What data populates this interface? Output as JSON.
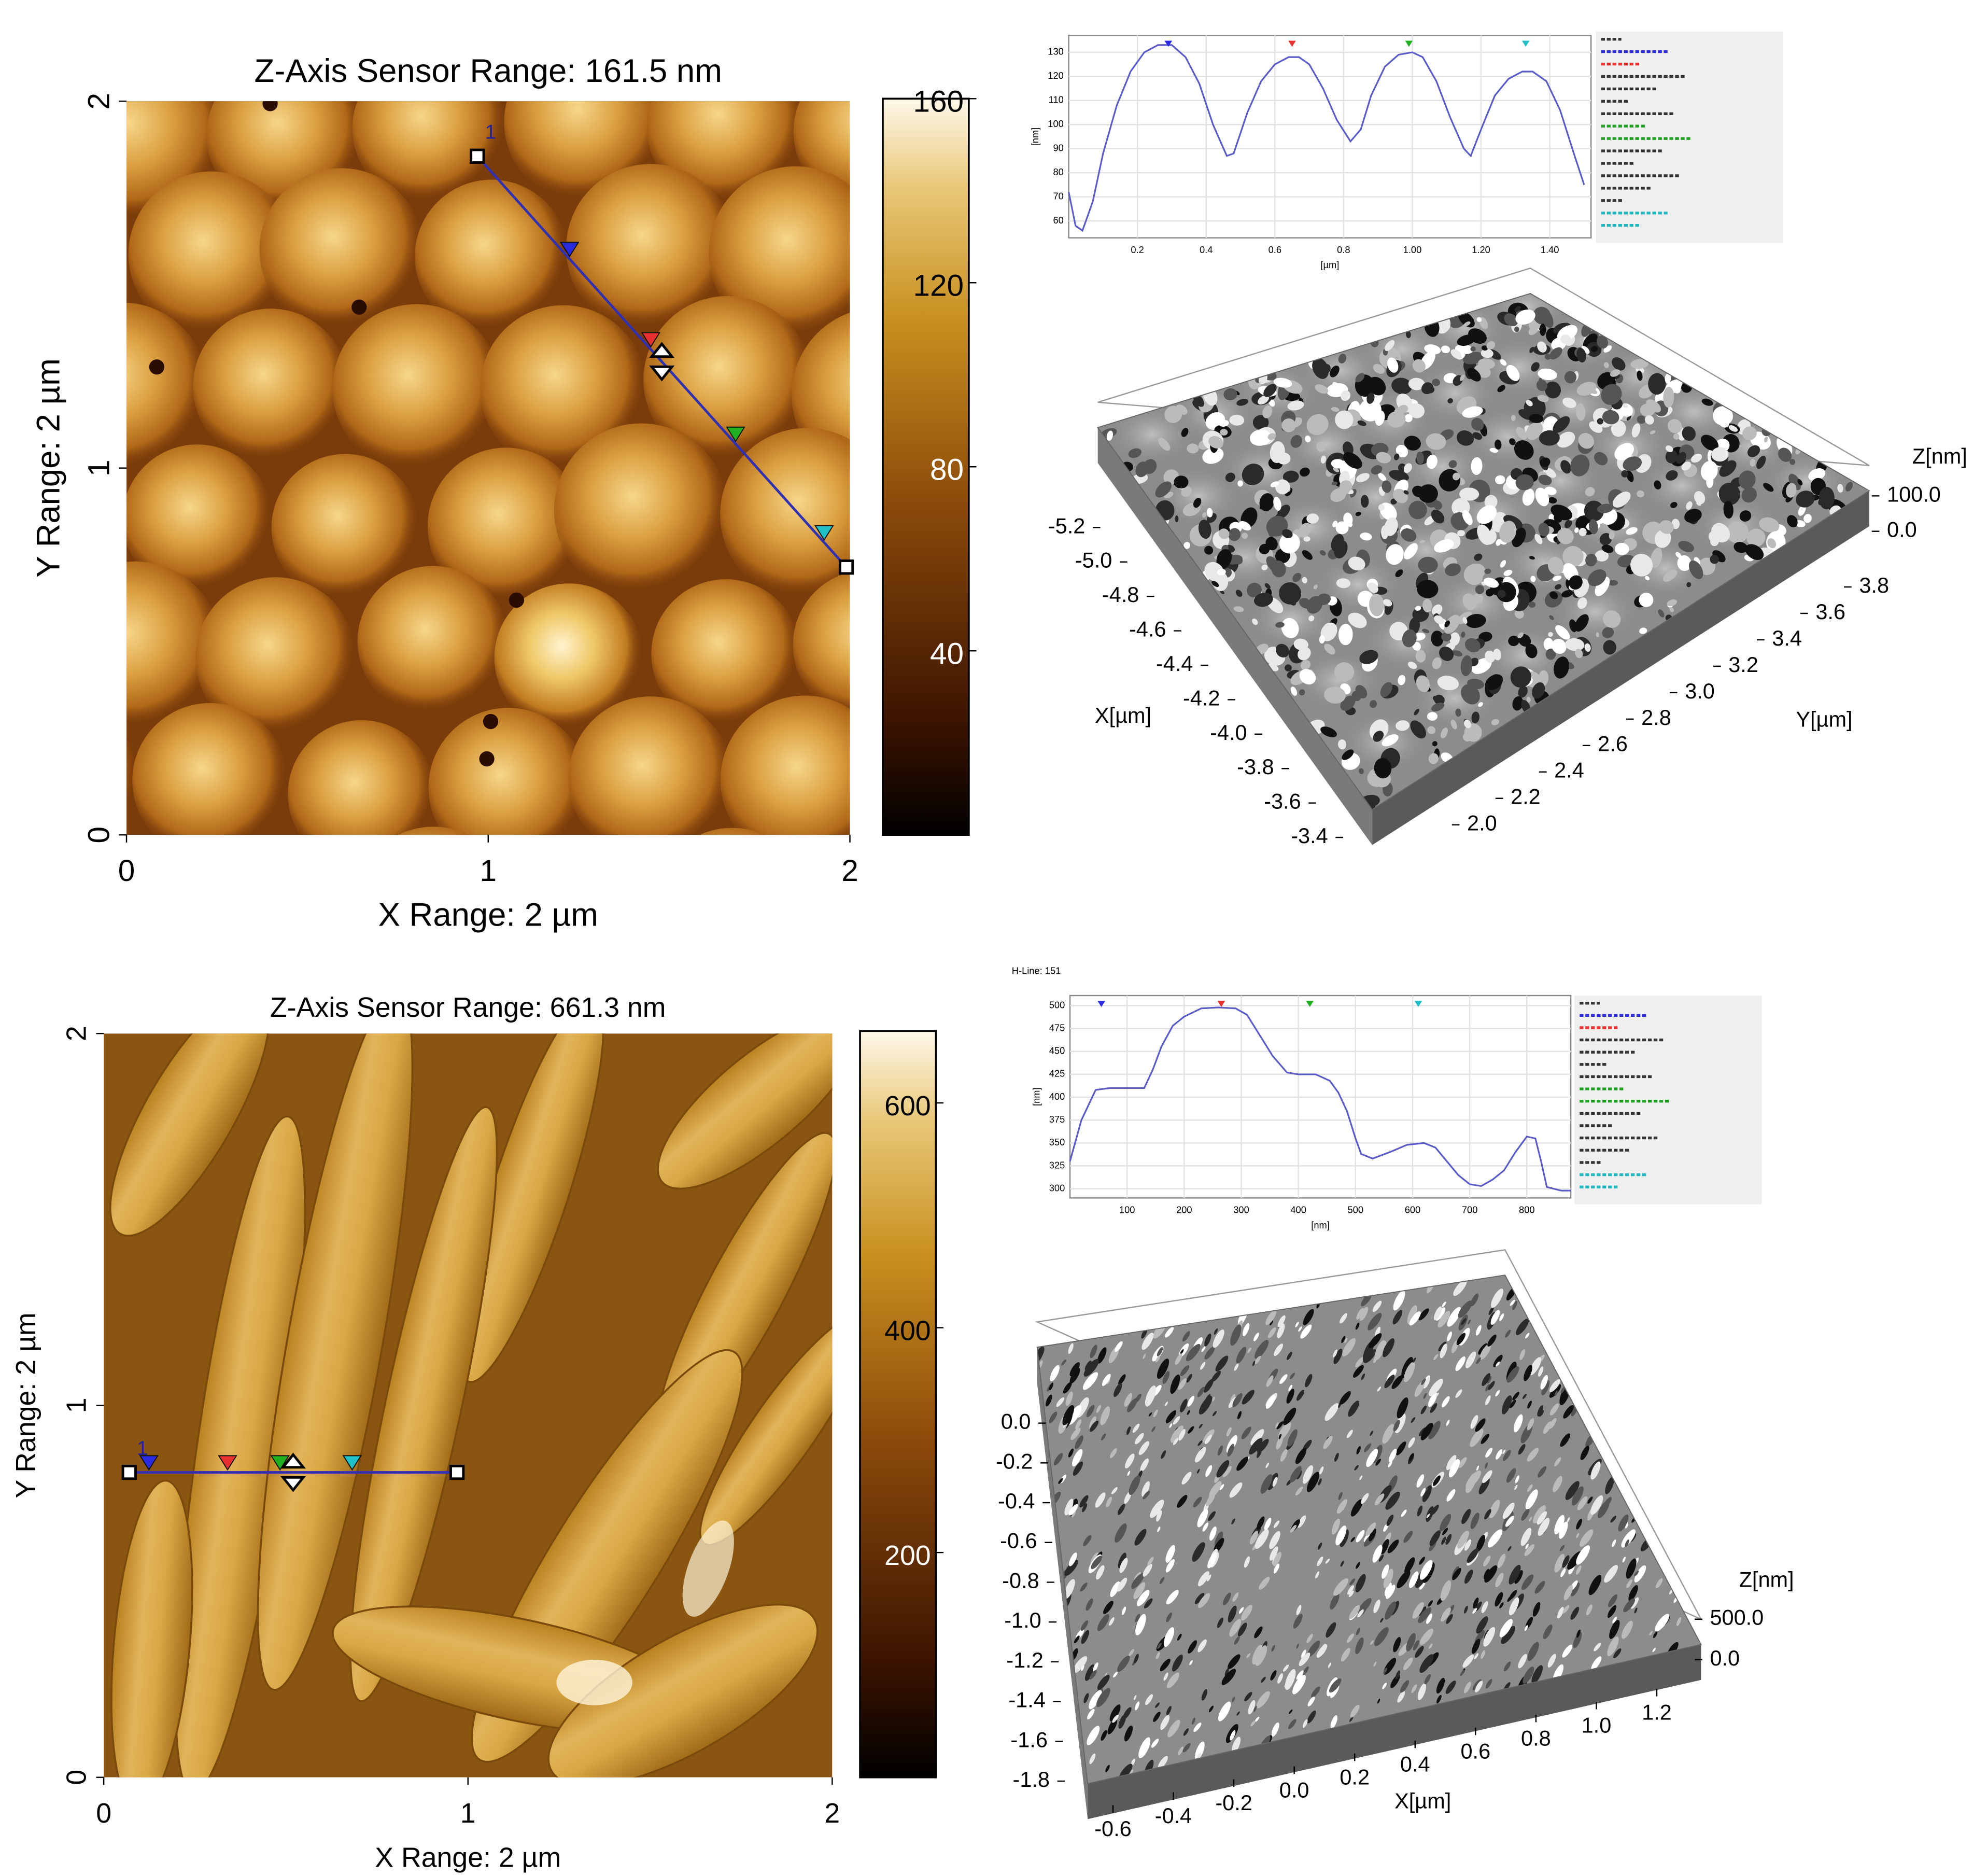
{
  "chart_data": [
    {
      "type": "heatmap",
      "title": "Z-Axis Sensor Range:  161.5 nm",
      "xlabel": "X Range: 2 µm",
      "ylabel": "Y Range: 2 µm",
      "xlim": [
        0,
        2
      ],
      "ylim": [
        0,
        2
      ],
      "xticks": [
        0,
        1,
        2
      ],
      "yticks": [
        0,
        1,
        2
      ],
      "clim": [
        0,
        160
      ],
      "cticks": [
        40,
        80,
        120,
        160
      ],
      "cursor": {
        "label": "1",
        "x": [
          0.97,
          1.99
        ],
        "y": [
          1.85,
          0.73
        ]
      }
    },
    {
      "type": "line",
      "xlabel": "[µm]",
      "ylabel": "[nm]",
      "color": "#5a5ac8",
      "grid": true,
      "x": [
        0,
        0.02,
        0.04,
        0.07,
        0.1,
        0.14,
        0.18,
        0.22,
        0.26,
        0.3,
        0.34,
        0.38,
        0.42,
        0.46,
        0.48,
        0.52,
        0.56,
        0.6,
        0.64,
        0.67,
        0.7,
        0.74,
        0.78,
        0.82,
        0.85,
        0.88,
        0.92,
        0.96,
        1.0,
        1.03,
        1.07,
        1.11,
        1.15,
        1.17,
        1.2,
        1.24,
        1.28,
        1.32,
        1.35,
        1.39,
        1.43,
        1.47,
        1.5
      ],
      "values": [
        72,
        58,
        56,
        68,
        88,
        108,
        122,
        130,
        133,
        133,
        128,
        117,
        100,
        87,
        88,
        105,
        118,
        125,
        128,
        128,
        125,
        115,
        102,
        93,
        98,
        112,
        124,
        129,
        130,
        128,
        118,
        103,
        90,
        87,
        98,
        112,
        119,
        122,
        122,
        118,
        106,
        88,
        75
      ],
      "xlim": [
        0,
        1.52
      ],
      "ylim": [
        53,
        137
      ],
      "xticks": [
        0.2,
        0.4,
        0.6,
        0.8,
        {
          "value": 1,
          "label": "1.00"
        },
        {
          "value": 1.2,
          "label": "1.20"
        },
        {
          "value": 1.4,
          "label": "1.40"
        }
      ],
      "yticks": [
        60,
        70,
        80,
        90,
        100,
        110,
        120,
        130
      ],
      "markers": {
        "x": [
          0.29,
          0.65,
          0.99,
          1.33
        ],
        "colors": [
          "#2a2ae0",
          "#e83030",
          "#20b020",
          "#20c0c8"
        ]
      }
    },
    {
      "type": "surface3d",
      "xlabel": "X[µm]",
      "ylabel": "Y[µm]",
      "zlabel": "Z[nm]",
      "xlim": [
        -5.2,
        -3.4
      ],
      "xticks": [
        -5.2,
        {
          "value": -5,
          "label": "-5.0"
        },
        -4.8,
        -4.6,
        -4.4,
        -4.2,
        {
          "value": -4,
          "label": "-4.0"
        },
        -3.8,
        -3.6,
        -3.4
      ],
      "ylim": [
        2,
        3.8
      ],
      "yticks": [
        {
          "value": 2,
          "label": "2.0"
        },
        2.2,
        2.4,
        2.6,
        2.8,
        {
          "value": 3,
          "label": "3.0"
        },
        3.2,
        3.4,
        3.6,
        3.8
      ],
      "zlim": [
        0,
        100
      ],
      "zticks": [
        {
          "value": 0,
          "label": "0.0"
        },
        {
          "value": 100,
          "label": "100.0"
        }
      ]
    },
    {
      "type": "heatmap",
      "title": "Z-Axis Sensor Range:  661.3 nm",
      "xlabel": "X Range: 2 µm",
      "ylabel": "Y Range: 2 µm",
      "xlim": [
        0,
        2
      ],
      "ylim": [
        0,
        2
      ],
      "xticks": [
        0,
        1,
        2
      ],
      "yticks": [
        0,
        1,
        2
      ],
      "clim": [
        0,
        664
      ],
      "cticks": [
        200,
        400,
        600
      ],
      "cursor": {
        "label": "1",
        "x": [
          0.07,
          0.97
        ],
        "y": [
          0.82,
          0.82
        ]
      }
    },
    {
      "type": "line",
      "title": "H-Line: 151",
      "xlabel": "[nm]",
      "ylabel": "[nm]",
      "color": "#5a5ac8",
      "grid": true,
      "x": [
        0,
        20,
        45,
        70,
        100,
        130,
        145,
        160,
        180,
        200,
        230,
        260,
        290,
        310,
        330,
        355,
        380,
        400,
        430,
        455,
        470,
        485,
        500,
        510,
        530,
        560,
        590,
        620,
        640,
        660,
        680,
        700,
        720,
        740,
        760,
        780,
        800,
        815,
        825,
        835,
        860,
        877
      ],
      "values": [
        330,
        375,
        408,
        410,
        410,
        410,
        430,
        455,
        478,
        488,
        497,
        498,
        497,
        490,
        470,
        445,
        427,
        425,
        425,
        418,
        405,
        385,
        355,
        338,
        333,
        340,
        348,
        350,
        345,
        330,
        315,
        305,
        303,
        310,
        320,
        340,
        357,
        355,
        330,
        302,
        298,
        298
      ],
      "xlim": [
        0,
        877
      ],
      "ylim": [
        290,
        511
      ],
      "xticks": [
        100,
        200,
        300,
        400,
        500,
        600,
        700,
        800
      ],
      "yticks": [
        300,
        325,
        350,
        375,
        400,
        425,
        450,
        475,
        500
      ],
      "markers": {
        "x": [
          55,
          265,
          420,
          610
        ],
        "colors": [
          "#2a2ae0",
          "#e83030",
          "#20b020",
          "#20c0c8"
        ]
      }
    },
    {
      "type": "surface3d",
      "xlabel": "X[µm]",
      "zlabel": "Z[nm]",
      "xlim": [
        -0.6,
        1.2
      ],
      "xticks": [
        -0.6,
        -0.4,
        -0.2,
        {
          "value": 0,
          "label": "0.0"
        },
        0.2,
        0.4,
        0.6,
        0.8,
        {
          "value": 1,
          "label": "1.0"
        },
        1.2
      ],
      "ylim": [
        -1.8,
        0
      ],
      "yticks": [
        {
          "value": 0,
          "label": "0.0"
        },
        -0.2,
        -0.4,
        -0.6,
        -0.8,
        {
          "value": -1,
          "label": "-1.0"
        },
        -1.2,
        -1.4,
        -1.6,
        -1.8
      ],
      "zlim": [
        0,
        500
      ],
      "zticks": [
        {
          "value": 0,
          "label": "0.0"
        },
        {
          "value": 500,
          "label": "500.0"
        }
      ]
    }
  ]
}
